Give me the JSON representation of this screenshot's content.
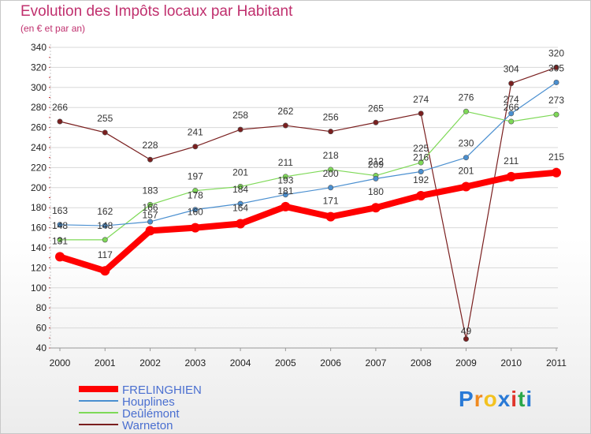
{
  "header": {
    "title": "Evolution des Impôts locaux par Habitant",
    "subtitle": "(en € et par an)"
  },
  "chart_data": {
    "type": "line",
    "title": "Evolution des Impôts locaux par Habitant",
    "subtitle": "(en € et par an)",
    "xlabel": "",
    "ylabel": "",
    "x": [
      "2000",
      "2001",
      "2002",
      "2003",
      "2004",
      "2005",
      "2006",
      "2007",
      "2008",
      "2009",
      "2010",
      "2011"
    ],
    "ylim": [
      40,
      340
    ],
    "yticks": [
      40,
      60,
      80,
      100,
      120,
      140,
      160,
      180,
      200,
      220,
      240,
      260,
      280,
      300,
      320,
      340
    ],
    "grid": "horizontal",
    "legend_position": "bottom-left",
    "series": [
      {
        "name": "FRELINGHIEN",
        "color": "#ff0000",
        "values": [
          131,
          117,
          157,
          160,
          164,
          181,
          171,
          180,
          192,
          201,
          211,
          215
        ]
      },
      {
        "name": "Houplines",
        "color": "#4a8fd0",
        "values": [
          163,
          162,
          166,
          178,
          184,
          193,
          200,
          209,
          216,
          230,
          274,
          305
        ]
      },
      {
        "name": "Deûlémont",
        "color": "#7ed957",
        "values": [
          148,
          148,
          183,
          197,
          201,
          211,
          218,
          212,
          225,
          276,
          266,
          273
        ]
      },
      {
        "name": "Warneton",
        "color": "#7a1f1f",
        "values": [
          266,
          255,
          228,
          241,
          258,
          262,
          256,
          265,
          274,
          49,
          304,
          320
        ]
      }
    ]
  },
  "logo": {
    "letters": [
      "P",
      "r",
      "o",
      "x",
      "i",
      "t",
      "i"
    ],
    "colors": [
      "#2a7ad6",
      "#f08a20",
      "#f3c220",
      "#2a7ad6",
      "#e0352b",
      "#2aa74a",
      "#2a7ad6"
    ]
  }
}
